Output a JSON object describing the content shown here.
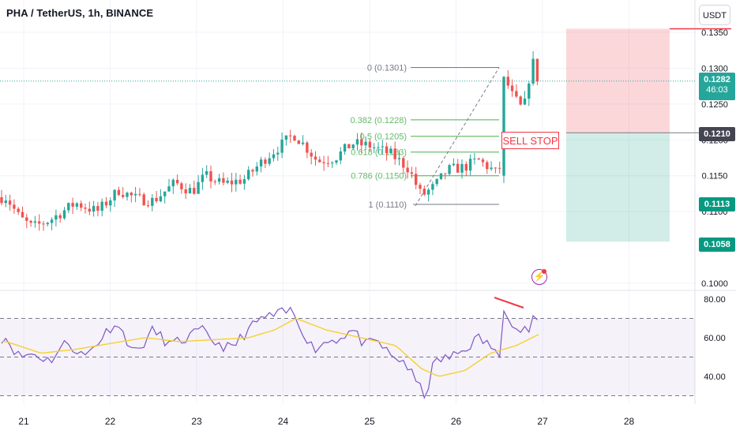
{
  "header": {
    "title": "PHA / TetherUS, 1h, BINANCE",
    "unit_button": "USDT"
  },
  "colors": {
    "up": "#26a69a",
    "down": "#ef5350",
    "accent": "#2962ff",
    "rsi_line": "#7e57c2",
    "rsi_ma": "#f5d130",
    "fib_green": "#4caf50",
    "sell": "#f23645"
  },
  "price_axis": {
    "ticks": [
      "0.1350",
      "0.1300",
      "0.1250",
      "0.1200",
      "0.1150",
      "0.1100",
      "0.1000"
    ]
  },
  "rsi_axis": {
    "ticks": [
      "80.00",
      "60.00",
      "40.00"
    ]
  },
  "time_axis": {
    "ticks": [
      "21",
      "22",
      "23",
      "24",
      "25",
      "26",
      "27",
      "28"
    ]
  },
  "badges": {
    "last_price": "0.1282",
    "countdown": "46:03",
    "stop_level": "0.1210",
    "target_1": "0.1113",
    "target_2": "0.1058"
  },
  "fib_levels": [
    {
      "label": "0 (0.1301)",
      "value": 0.1301
    },
    {
      "label": "0.382 (0.1228)",
      "value": 0.1228
    },
    {
      "label": "0.5 (0.1205)",
      "value": 0.1205
    },
    {
      "label": "0.618 (0.1183)",
      "value": 0.1183
    },
    {
      "label": "0.786 (0.1150)",
      "value": 0.115
    },
    {
      "label": "1 (0.1110)",
      "value": 0.111
    }
  ],
  "annotations": {
    "sell_stop": "SELL STOP",
    "flash_icon": "lightning-icon"
  },
  "chart_data": {
    "type": "candlestick",
    "title": "PHA / TetherUS, 1h, BINANCE",
    "price_range": [
      0.099,
      0.136
    ],
    "x_range_days": [
      20.8,
      28.6
    ],
    "close_anchors": [
      [
        20.8,
        0.112
      ],
      [
        20.95,
        0.1092
      ],
      [
        21.1,
        0.1078
      ],
      [
        21.3,
        0.1088
      ],
      [
        21.6,
        0.1112
      ],
      [
        21.85,
        0.11
      ],
      [
        22.1,
        0.113
      ],
      [
        22.3,
        0.1118
      ],
      [
        22.5,
        0.1115
      ],
      [
        22.75,
        0.114
      ],
      [
        22.95,
        0.1128
      ],
      [
        23.1,
        0.115
      ],
      [
        23.3,
        0.1138
      ],
      [
        23.55,
        0.1145
      ],
      [
        23.8,
        0.1175
      ],
      [
        24.0,
        0.1195
      ],
      [
        24.12,
        0.1208
      ],
      [
        24.25,
        0.1192
      ],
      [
        24.4,
        0.117
      ],
      [
        24.6,
        0.1175
      ],
      [
        24.8,
        0.1195
      ],
      [
        25.0,
        0.1192
      ],
      [
        25.25,
        0.118
      ],
      [
        25.45,
        0.116
      ],
      [
        25.6,
        0.1122
      ],
      [
        25.75,
        0.1135
      ],
      [
        25.9,
        0.1158
      ],
      [
        26.1,
        0.1162
      ],
      [
        26.25,
        0.1172
      ],
      [
        26.4,
        0.116
      ],
      [
        26.5,
        0.115
      ],
      [
        26.55,
        0.129
      ],
      [
        26.65,
        0.1262
      ],
      [
        26.78,
        0.124
      ],
      [
        26.88,
        0.1312
      ],
      [
        26.95,
        0.1282
      ]
    ],
    "trade_levels": {
      "entry": 0.121,
      "stop": 0.1355,
      "target_1": 0.1113,
      "target_2": 0.1058
    },
    "rsi": {
      "range": [
        25,
        82
      ],
      "upper_band": 70,
      "middle": 50,
      "lower_band": 30,
      "anchors": [
        [
          20.8,
          60
        ],
        [
          20.95,
          50
        ],
        [
          21.1,
          52
        ],
        [
          21.3,
          48
        ],
        [
          21.5,
          58
        ],
        [
          21.7,
          50
        ],
        [
          21.9,
          60
        ],
        [
          22.05,
          68
        ],
        [
          22.15,
          62
        ],
        [
          22.3,
          52
        ],
        [
          22.5,
          64
        ],
        [
          22.7,
          56
        ],
        [
          22.9,
          60
        ],
        [
          23.05,
          64
        ],
        [
          23.2,
          58
        ],
        [
          23.4,
          54
        ],
        [
          23.55,
          62
        ],
        [
          23.75,
          70
        ],
        [
          23.95,
          72
        ],
        [
          24.1,
          74
        ],
        [
          24.25,
          62
        ],
        [
          24.35,
          54
        ],
        [
          24.5,
          58
        ],
        [
          24.65,
          60
        ],
        [
          24.8,
          64
        ],
        [
          24.95,
          56
        ],
        [
          25.1,
          58
        ],
        [
          25.25,
          50
        ],
        [
          25.4,
          48
        ],
        [
          25.55,
          36
        ],
        [
          25.65,
          30
        ],
        [
          25.75,
          48
        ],
        [
          25.95,
          50
        ],
        [
          26.1,
          54
        ],
        [
          26.25,
          60
        ],
        [
          26.4,
          56
        ],
        [
          26.5,
          48
        ],
        [
          26.55,
          77
        ],
        [
          26.7,
          64
        ],
        [
          26.85,
          64
        ],
        [
          26.9,
          72
        ],
        [
          26.97,
          62
        ]
      ],
      "ma_anchors": [
        [
          20.8,
          58
        ],
        [
          21.2,
          52
        ],
        [
          21.6,
          54
        ],
        [
          22.0,
          57
        ],
        [
          22.4,
          60
        ],
        [
          22.8,
          58
        ],
        [
          23.2,
          59
        ],
        [
          23.6,
          60
        ],
        [
          23.9,
          64
        ],
        [
          24.15,
          70
        ],
        [
          24.5,
          64
        ],
        [
          24.9,
          60
        ],
        [
          25.3,
          56
        ],
        [
          25.6,
          44
        ],
        [
          25.8,
          40
        ],
        [
          26.1,
          43
        ],
        [
          26.4,
          52
        ],
        [
          26.7,
          56
        ],
        [
          26.97,
          62
        ]
      ]
    }
  }
}
